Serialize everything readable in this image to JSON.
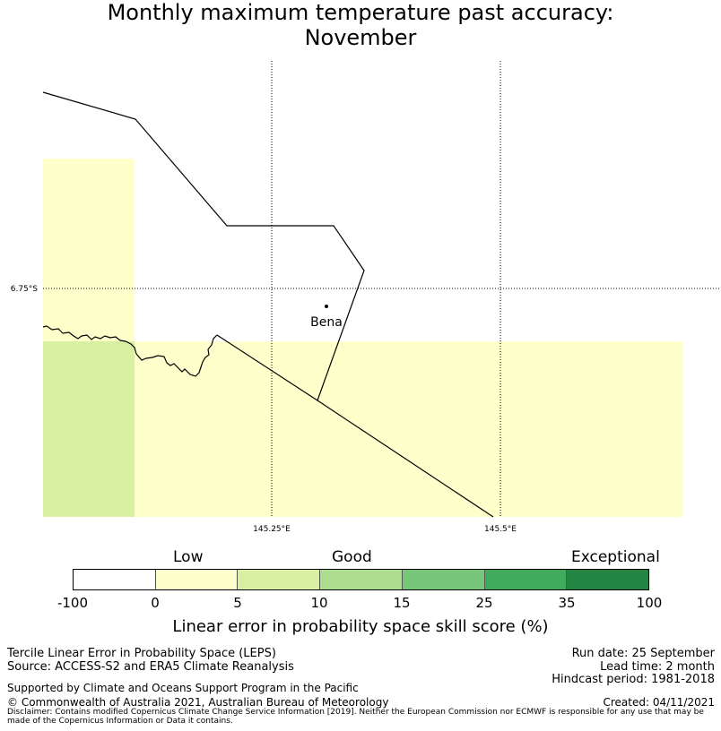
{
  "title": {
    "line1": "Monthly maximum temperature past accuracy:",
    "line2": "November"
  },
  "map": {
    "place_label": "Bena",
    "lat_label": "6.75°S",
    "lon_labels": [
      "145.25°E",
      "145.5°E"
    ]
  },
  "colorbar": {
    "categories": [
      "Low",
      "Good",
      "Exceptional"
    ],
    "ticks": [
      "-100",
      "0",
      "5",
      "10",
      "15",
      "25",
      "35",
      "100"
    ],
    "colors": [
      "#ffffff",
      "#ffffcc",
      "#d9f0a3",
      "#addd8e",
      "#78c679",
      "#41ab5d",
      "#238443"
    ],
    "label": "Linear error in probability space skill score (%)"
  },
  "footer": {
    "left1": "Tercile Linear Error in Probability Space (LEPS)",
    "left2": "Source: ACCESS-S2 and ERA5 Climate Reanalysis",
    "support": "Supported by Climate and Oceans Support Program in the Pacific",
    "copyright": "© Commonwealth of Australia 2021, Australian Bureau of Meteorology",
    "run_date": "Run date: 25 September",
    "lead_time": "Lead time: 2 month",
    "hindcast": "Hindcast period: 1981-2018",
    "created": "Created: 04/11/2021",
    "disclaimer": "Disclaimer: Contains modified Copernicus Climate Change Service Information [2019]. Neither the European Commission nor ECMWF is responsible for any use that may be made of the Copernicus Information or Data it contains."
  }
}
